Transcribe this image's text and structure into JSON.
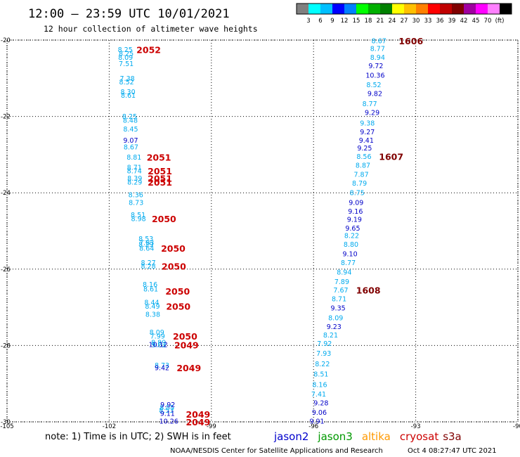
{
  "header": {
    "title": "12:00 – 23:59 UTC 10/01/2021",
    "subtitle": "12 hour collection of altimeter wave heights"
  },
  "legend": {
    "colors": [
      "#808080",
      "#00ffff",
      "#00bfff",
      "#0000ff",
      "#0080ff",
      "#00ff00",
      "#00b000",
      "#008000",
      "#ffff00",
      "#ffc000",
      "#ff8000",
      "#ff0000",
      "#c00000",
      "#800000",
      "#a000a0",
      "#ff00ff",
      "#ff80ff",
      "#000000"
    ],
    "labels": [
      "3",
      "6",
      "9",
      "12",
      "15",
      "18",
      "21",
      "24",
      "27",
      "30",
      "33",
      "36",
      "39",
      "42",
      "45",
      "70",
      "(ft)"
    ]
  },
  "chart_data": {
    "type": "scatter",
    "xlim": [
      -105,
      -90
    ],
    "ylim": [
      -30,
      -20
    ],
    "x_ticks": [
      "-105",
      "-102",
      "-99",
      "-96",
      "-93",
      "-90"
    ],
    "y_ticks": [
      "-20",
      "-22",
      "-24",
      "-26",
      "-28",
      "-30"
    ],
    "grid": true,
    "series": [
      {
        "name": "s3a",
        "color": "#00aaee",
        "points": [
          {
            "x": -101.53,
            "y": -20.25,
            "label": "8.25"
          },
          {
            "x": -101.5,
            "y": -20.35,
            "label": "8.25"
          },
          {
            "x": -101.52,
            "y": -20.45,
            "label": "8.09"
          },
          {
            "x": -101.5,
            "y": -20.62,
            "label": "7.51"
          },
          {
            "x": -101.47,
            "y": -21.0,
            "label": "7.38"
          },
          {
            "x": -101.49,
            "y": -21.1,
            "label": "8.52"
          },
          {
            "x": -101.45,
            "y": -21.35,
            "label": "8.30"
          },
          {
            "x": -101.44,
            "y": -21.45,
            "label": "8.61"
          },
          {
            "x": -101.4,
            "y": -22.0,
            "label": "8.25"
          },
          {
            "x": -101.38,
            "y": -22.1,
            "label": "8.48"
          },
          {
            "x": -101.37,
            "y": -22.33,
            "label": "8.45"
          },
          {
            "x": -101.36,
            "y": -22.8,
            "label": "8.67"
          },
          {
            "x": -101.27,
            "y": -23.07,
            "label": "8.81"
          },
          {
            "x": -101.26,
            "y": -23.33,
            "label": "8.71"
          },
          {
            "x": -101.26,
            "y": -23.43,
            "label": "8.74"
          },
          {
            "x": -101.25,
            "y": -23.62,
            "label": "8.39"
          },
          {
            "x": -101.25,
            "y": -23.72,
            "label": "8.29"
          },
          {
            "x": -101.22,
            "y": -24.05,
            "label": "8.36"
          },
          {
            "x": -101.21,
            "y": -24.25,
            "label": "8.73"
          },
          {
            "x": -101.15,
            "y": -24.58,
            "label": "8.51"
          },
          {
            "x": -101.14,
            "y": -24.68,
            "label": "8.98"
          },
          {
            "x": -100.92,
            "y": -25.2,
            "label": "8.53"
          },
          {
            "x": -100.9,
            "y": -25.3,
            "label": "7.83"
          },
          {
            "x": -100.92,
            "y": -25.35,
            "label": "8.29"
          },
          {
            "x": -100.9,
            "y": -25.45,
            "label": "8.64"
          },
          {
            "x": -100.85,
            "y": -25.83,
            "label": "8.27"
          },
          {
            "x": -100.85,
            "y": -25.92,
            "label": "8.28"
          },
          {
            "x": -100.8,
            "y": -26.4,
            "label": "8.16"
          },
          {
            "x": -100.78,
            "y": -26.52,
            "label": "8.61"
          },
          {
            "x": -100.75,
            "y": -26.87,
            "label": "8.44"
          },
          {
            "x": -100.73,
            "y": -26.97,
            "label": "8.49"
          },
          {
            "x": -100.72,
            "y": -27.18,
            "label": "8.38"
          },
          {
            "x": -100.6,
            "y": -27.65,
            "label": "8.09"
          },
          {
            "x": -100.58,
            "y": -27.75,
            "label": "7.99"
          },
          {
            "x": -100.55,
            "y": -27.92,
            "label": "8.89"
          },
          {
            "x": -100.54,
            "y": -27.98,
            "label": "9.02"
          },
          {
            "x": -100.45,
            "y": -28.52,
            "label": "8.73"
          },
          {
            "x": -100.3,
            "y": -29.62,
            "label": "8.55"
          },
          {
            "x": -100.32,
            "y": -29.7,
            "label": "8.53"
          },
          {
            "x": -94.08,
            "y": -20.02,
            "label": "8.67"
          },
          {
            "x": -94.12,
            "y": -20.22,
            "label": "8.77"
          },
          {
            "x": -95.68,
            "y": -27.95,
            "label": "7.92"
          },
          {
            "x": -95.7,
            "y": -28.2,
            "label": "7.93"
          },
          {
            "x": -95.74,
            "y": -28.48,
            "label": "8.22"
          },
          {
            "x": -95.78,
            "y": -28.75,
            "label": "8.51"
          },
          {
            "x": -95.82,
            "y": -29.02,
            "label": "8.16"
          },
          {
            "x": -95.85,
            "y": -29.27,
            "label": "7.41"
          }
        ]
      },
      {
        "name": "s3a-deep",
        "color": "#0000c8",
        "points": [
          {
            "x": -101.37,
            "y": -22.62,
            "label": "9.07"
          },
          {
            "x": -100.56,
            "y": -27.97,
            "label": "10.12"
          },
          {
            "x": -100.45,
            "y": -28.58,
            "label": "9.42"
          },
          {
            "x": -100.28,
            "y": -29.55,
            "label": "9.92"
          },
          {
            "x": -100.29,
            "y": -29.78,
            "label": "9.11"
          },
          {
            "x": -100.25,
            "y": -29.98,
            "label": "10.26"
          },
          {
            "x": -94.17,
            "y": -20.67,
            "label": "9.72"
          },
          {
            "x": -94.19,
            "y": -20.92,
            "label": "10.36"
          },
          {
            "x": -95.78,
            "y": -29.5,
            "label": "9.28"
          },
          {
            "x": -95.83,
            "y": -29.75,
            "label": "9.06"
          },
          {
            "x": -95.9,
            "y": -29.98,
            "label": "9.91"
          }
        ]
      },
      {
        "name": "jason2",
        "color": "#00aaee",
        "points": [
          {
            "x": -94.12,
            "y": -20.45,
            "label": "8.94"
          },
          {
            "x": -94.23,
            "y": -21.17,
            "label": "8.52"
          },
          {
            "x": -94.35,
            "y": -21.67,
            "label": "8.77"
          },
          {
            "x": -94.42,
            "y": -22.17,
            "label": "9.38"
          },
          {
            "x": -94.52,
            "y": -23.05,
            "label": "8.56"
          },
          {
            "x": -94.55,
            "y": -23.28,
            "label": "8.87"
          },
          {
            "x": -94.6,
            "y": -23.52,
            "label": "7.87"
          },
          {
            "x": -94.65,
            "y": -23.75,
            "label": "8.79"
          },
          {
            "x": -94.72,
            "y": -24.0,
            "label": "8.75"
          },
          {
            "x": -94.88,
            "y": -25.12,
            "label": "8.22"
          },
          {
            "x": -94.9,
            "y": -25.35,
            "label": "8.80"
          },
          {
            "x": -94.98,
            "y": -25.83,
            "label": "8.77"
          },
          {
            "x": -95.1,
            "y": -26.08,
            "label": "8.94"
          },
          {
            "x": -95.17,
            "y": -26.33,
            "label": "7.89"
          },
          {
            "x": -95.2,
            "y": -26.55,
            "label": "7.67"
          },
          {
            "x": -95.25,
            "y": -26.78,
            "label": "8.71"
          },
          {
            "x": -95.35,
            "y": -27.27,
            "label": "8.09"
          },
          {
            "x": -95.5,
            "y": -27.73,
            "label": "8.21"
          }
        ]
      },
      {
        "name": "jason2-deep",
        "color": "#0000c8",
        "points": [
          {
            "x": -94.2,
            "y": -21.4,
            "label": "9.82"
          },
          {
            "x": -94.28,
            "y": -21.9,
            "label": "9.29"
          },
          {
            "x": -94.42,
            "y": -22.4,
            "label": "9.27"
          },
          {
            "x": -94.45,
            "y": -22.62,
            "label": "9.41"
          },
          {
            "x": -94.5,
            "y": -22.83,
            "label": "9.25"
          },
          {
            "x": -94.75,
            "y": -24.25,
            "label": "9.09"
          },
          {
            "x": -94.77,
            "y": -24.48,
            "label": "9.16"
          },
          {
            "x": -94.8,
            "y": -24.7,
            "label": "9.19"
          },
          {
            "x": -94.85,
            "y": -24.93,
            "label": "9.65"
          },
          {
            "x": -94.93,
            "y": -25.6,
            "label": "9.10"
          },
          {
            "x": -95.28,
            "y": -27.02,
            "label": "9.35"
          },
          {
            "x": -95.4,
            "y": -27.5,
            "label": "9.23"
          }
        ]
      }
    ],
    "annotations": [
      {
        "text": "2052",
        "x": -101.2,
        "y": -20.25,
        "color": "#cc0000"
      },
      {
        "text": "2051",
        "x": -100.9,
        "y": -23.07,
        "color": "#cc0000"
      },
      {
        "text": "2051",
        "x": -100.87,
        "y": -23.43,
        "color": "#cc0000"
      },
      {
        "text": "2051",
        "x": -100.87,
        "y": -23.62,
        "color": "#cc0000"
      },
      {
        "text": "2051",
        "x": -100.87,
        "y": -23.72,
        "color": "#cc0000"
      },
      {
        "text": "2050",
        "x": -100.75,
        "y": -24.68,
        "color": "#cc0000"
      },
      {
        "text": "2050",
        "x": -100.48,
        "y": -25.45,
        "color": "#cc0000"
      },
      {
        "text": "2050",
        "x": -100.46,
        "y": -25.92,
        "color": "#cc0000"
      },
      {
        "text": "2050",
        "x": -100.35,
        "y": -26.57,
        "color": "#cc0000"
      },
      {
        "text": "2050",
        "x": -100.33,
        "y": -26.97,
        "color": "#cc0000"
      },
      {
        "text": "2050",
        "x": -100.13,
        "y": -27.75,
        "color": "#cc0000"
      },
      {
        "text": "2049",
        "x": -100.09,
        "y": -27.98,
        "color": "#cc0000"
      },
      {
        "text": "2049",
        "x": -100.02,
        "y": -28.58,
        "color": "#cc0000"
      },
      {
        "text": "2049",
        "x": -99.75,
        "y": -29.8,
        "color": "#cc0000"
      },
      {
        "text": "2049",
        "x": -99.75,
        "y": -30.0,
        "color": "#cc0000"
      },
      {
        "text": "1606",
        "x": -93.5,
        "y": -20.02,
        "color": "#800000"
      },
      {
        "text": "1607",
        "x": -94.08,
        "y": -23.05,
        "color": "#800000"
      },
      {
        "text": "1608",
        "x": -94.75,
        "y": -26.55,
        "color": "#800000"
      }
    ]
  },
  "footer": {
    "note": "note: 1) Time is in UTC; 2) SWH is in feet",
    "satellites": [
      {
        "name": "jason2",
        "color": "#0000cc"
      },
      {
        "name": "jason3",
        "color": "#009900"
      },
      {
        "name": "altika",
        "color": "#ff9900"
      },
      {
        "name": "cryosat",
        "color": "#cc0000"
      },
      {
        "name": "s3a",
        "color": "#800000"
      }
    ],
    "credit": "NOAA/NESDIS Center for Satellite Applications and Research",
    "timestamp": "Oct  4 08:27:47 UTC 2021"
  }
}
